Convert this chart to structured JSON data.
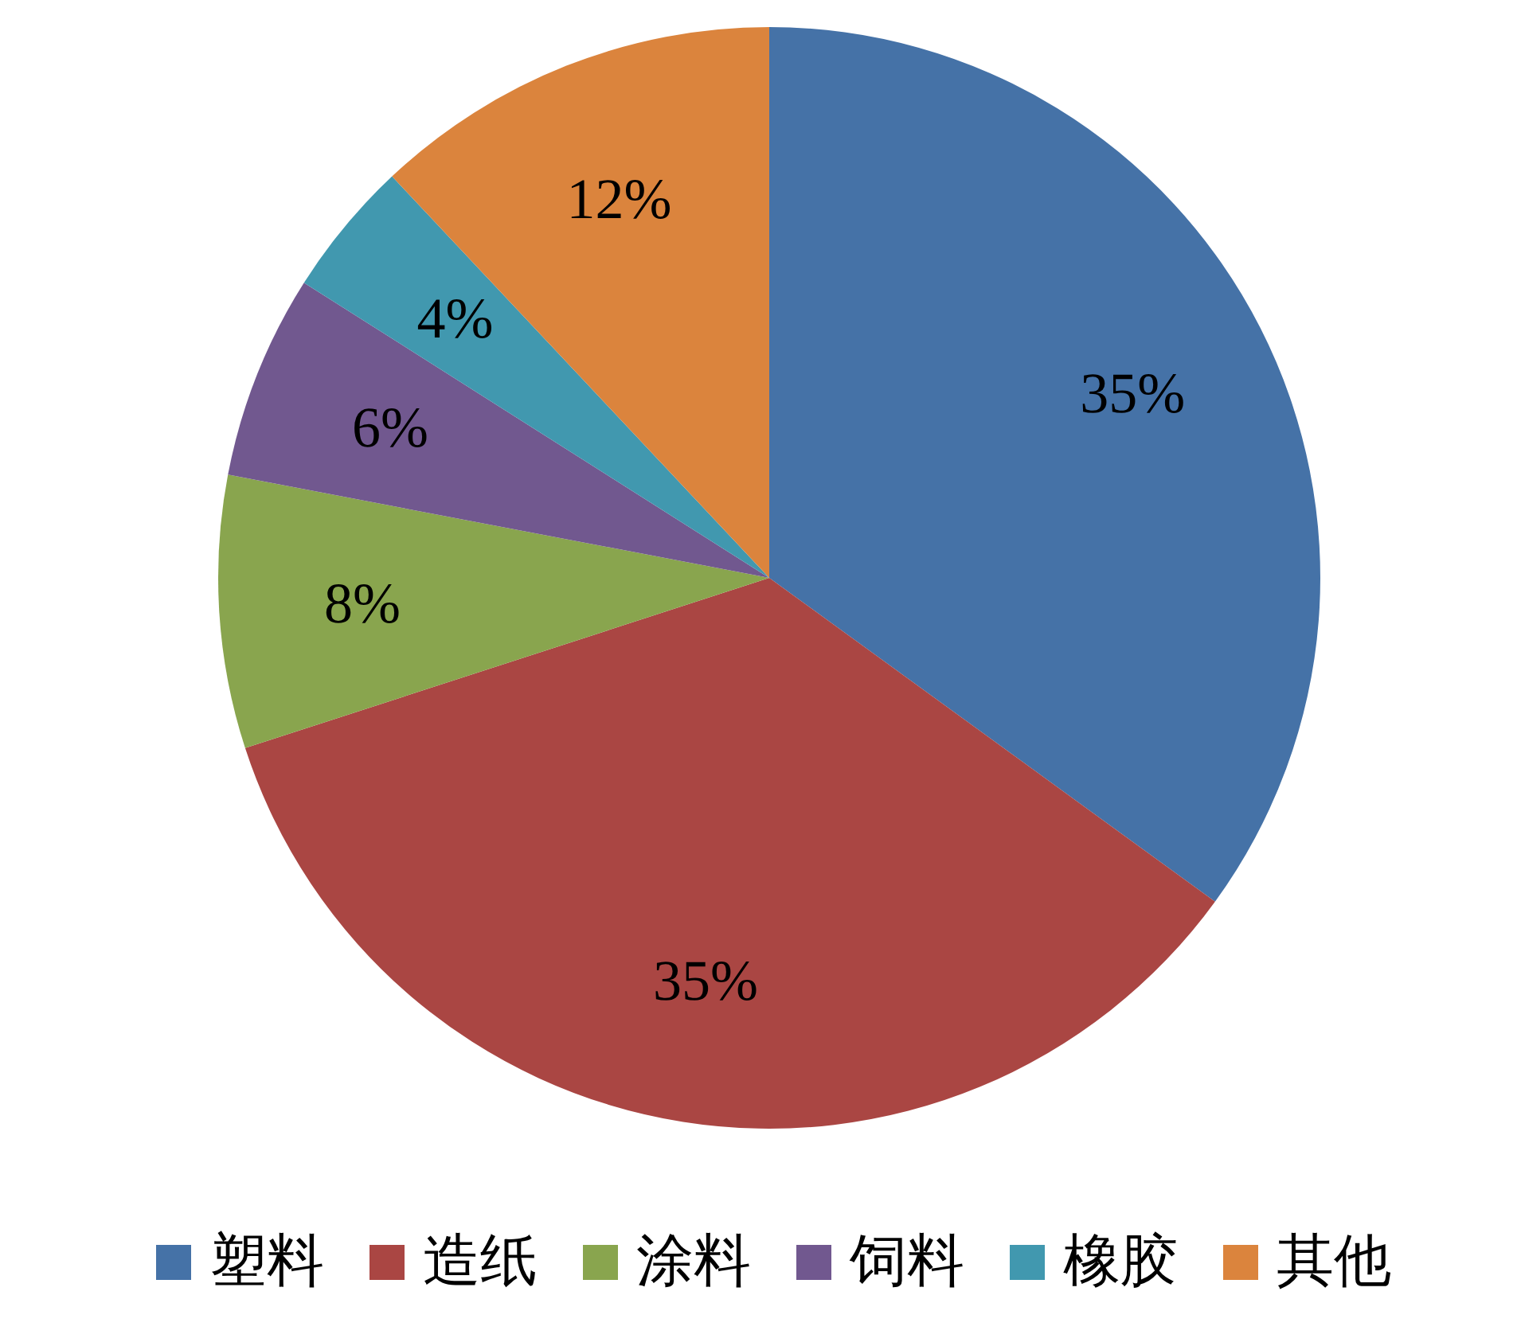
{
  "chart_data": {
    "type": "pie",
    "categories": [
      "塑料",
      "造纸",
      "涂料",
      "饲料",
      "橡胶",
      "其他"
    ],
    "values": [
      35,
      35,
      8,
      6,
      4,
      12
    ],
    "value_labels": [
      "35%",
      "35%",
      "8%",
      "6%",
      "4%",
      "12%"
    ],
    "colors": [
      "#4572a7",
      "#aa4643",
      "#89a54e",
      "#71588f",
      "#4198af",
      "#db843d"
    ],
    "legend": "bottom"
  }
}
